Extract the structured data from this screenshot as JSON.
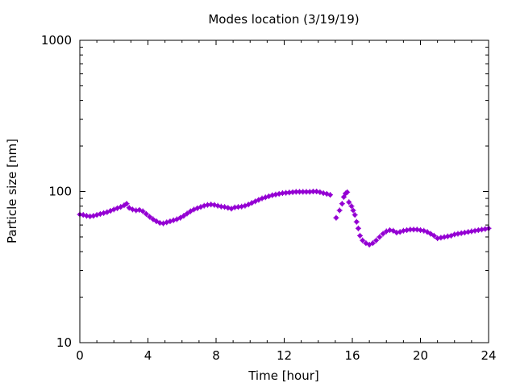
{
  "chart_data": {
    "type": "scatter",
    "title": "Modes location (3/19/19)",
    "xlabel": "Time [hour]",
    "ylabel": "Particle size [nm]",
    "xlim": [
      0,
      24
    ],
    "ylim": [
      10,
      1000
    ],
    "y_scale": "log",
    "x_ticks": [
      0,
      4,
      8,
      12,
      16,
      20,
      24
    ],
    "x_tick_labels": [
      "0",
      "4",
      "8",
      "12",
      "16",
      "20",
      "24"
    ],
    "y_ticks": [
      10,
      100,
      1000
    ],
    "y_tick_labels": [
      "10",
      "100",
      "1000"
    ],
    "grid": false,
    "legend": "none",
    "marker_color": "#9400d3",
    "series": [
      {
        "values": [
          [
            0.0,
            70.5
          ],
          [
            0.2,
            70.0
          ],
          [
            0.4,
            69.0
          ],
          [
            0.6,
            68.5
          ],
          [
            0.8,
            69.0
          ],
          [
            1.0,
            70.0
          ],
          [
            1.2,
            71.0
          ],
          [
            1.4,
            72.0
          ],
          [
            1.6,
            73.0
          ],
          [
            1.8,
            74.5
          ],
          [
            2.0,
            76.0
          ],
          [
            2.2,
            77.5
          ],
          [
            2.4,
            79.0
          ],
          [
            2.6,
            81.0
          ],
          [
            2.75,
            83.0
          ],
          [
            2.9,
            78.0
          ],
          [
            3.1,
            76.0
          ],
          [
            3.3,
            75.0
          ],
          [
            3.5,
            75.5
          ],
          [
            3.7,
            74.0
          ],
          [
            3.9,
            71.0
          ],
          [
            4.1,
            68.0
          ],
          [
            4.3,
            65.5
          ],
          [
            4.5,
            63.5
          ],
          [
            4.7,
            62.0
          ],
          [
            4.9,
            61.5
          ],
          [
            5.1,
            62.5
          ],
          [
            5.3,
            63.5
          ],
          [
            5.5,
            64.5
          ],
          [
            5.7,
            65.5
          ],
          [
            5.9,
            67.0
          ],
          [
            6.1,
            69.0
          ],
          [
            6.3,
            71.5
          ],
          [
            6.5,
            74.0
          ],
          [
            6.7,
            76.0
          ],
          [
            6.9,
            77.5
          ],
          [
            7.1,
            79.0
          ],
          [
            7.3,
            80.5
          ],
          [
            7.5,
            81.5
          ],
          [
            7.7,
            82.0
          ],
          [
            7.9,
            81.5
          ],
          [
            8.1,
            80.5
          ],
          [
            8.3,
            79.5
          ],
          [
            8.5,
            79.0
          ],
          [
            8.7,
            78.0
          ],
          [
            8.9,
            77.0
          ],
          [
            9.1,
            78.5
          ],
          [
            9.3,
            79.0
          ],
          [
            9.5,
            79.5
          ],
          [
            9.7,
            80.5
          ],
          [
            9.9,
            82.0
          ],
          [
            10.1,
            84.0
          ],
          [
            10.3,
            86.0
          ],
          [
            10.5,
            88.0
          ],
          [
            10.7,
            90.0
          ],
          [
            10.9,
            91.5
          ],
          [
            11.1,
            93.0
          ],
          [
            11.3,
            94.5
          ],
          [
            11.5,
            95.5
          ],
          [
            11.7,
            96.5
          ],
          [
            11.9,
            97.5
          ],
          [
            12.1,
            98.0
          ],
          [
            12.3,
            98.5
          ],
          [
            12.5,
            99.0
          ],
          [
            12.7,
            99.5
          ],
          [
            12.9,
            99.5
          ],
          [
            13.1,
            99.5
          ],
          [
            13.3,
            99.5
          ],
          [
            13.5,
            99.5
          ],
          [
            13.7,
            100.0
          ],
          [
            13.9,
            100.0
          ],
          [
            14.1,
            99.0
          ],
          [
            14.3,
            97.5
          ],
          [
            14.5,
            96.5
          ],
          [
            14.7,
            95.0
          ],
          [
            15.05,
            67.0
          ],
          [
            15.25,
            75.0
          ],
          [
            15.4,
            83.0
          ],
          [
            15.5,
            92.0
          ],
          [
            15.6,
            97.0
          ],
          [
            15.7,
            99.0
          ],
          [
            15.8,
            85.0
          ],
          [
            15.95,
            80.0
          ],
          [
            16.05,
            75.0
          ],
          [
            16.15,
            70.0
          ],
          [
            16.25,
            63.0
          ],
          [
            16.35,
            57.0
          ],
          [
            16.45,
            51.0
          ],
          [
            16.6,
            47.5
          ],
          [
            16.8,
            45.5
          ],
          [
            17.0,
            44.5
          ],
          [
            17.2,
            45.5
          ],
          [
            17.4,
            47.5
          ],
          [
            17.6,
            50.0
          ],
          [
            17.8,
            52.5
          ],
          [
            18.0,
            54.5
          ],
          [
            18.2,
            55.5
          ],
          [
            18.4,
            55.0
          ],
          [
            18.6,
            53.5
          ],
          [
            18.8,
            54.0
          ],
          [
            19.0,
            55.0
          ],
          [
            19.2,
            55.5
          ],
          [
            19.4,
            56.0
          ],
          [
            19.6,
            56.0
          ],
          [
            19.8,
            56.0
          ],
          [
            20.0,
            55.5
          ],
          [
            20.2,
            55.0
          ],
          [
            20.4,
            54.0
          ],
          [
            20.6,
            52.5
          ],
          [
            20.8,
            51.0
          ],
          [
            21.0,
            49.0
          ],
          [
            21.2,
            49.5
          ],
          [
            21.4,
            50.0
          ],
          [
            21.6,
            50.5
          ],
          [
            21.8,
            51.0
          ],
          [
            22.0,
            52.0
          ],
          [
            22.2,
            52.5
          ],
          [
            22.4,
            53.0
          ],
          [
            22.6,
            53.5
          ],
          [
            22.8,
            54.0
          ],
          [
            23.0,
            54.5
          ],
          [
            23.2,
            55.0
          ],
          [
            23.4,
            55.5
          ],
          [
            23.6,
            56.0
          ],
          [
            23.8,
            56.5
          ],
          [
            24.0,
            57.0
          ]
        ]
      }
    ]
  }
}
